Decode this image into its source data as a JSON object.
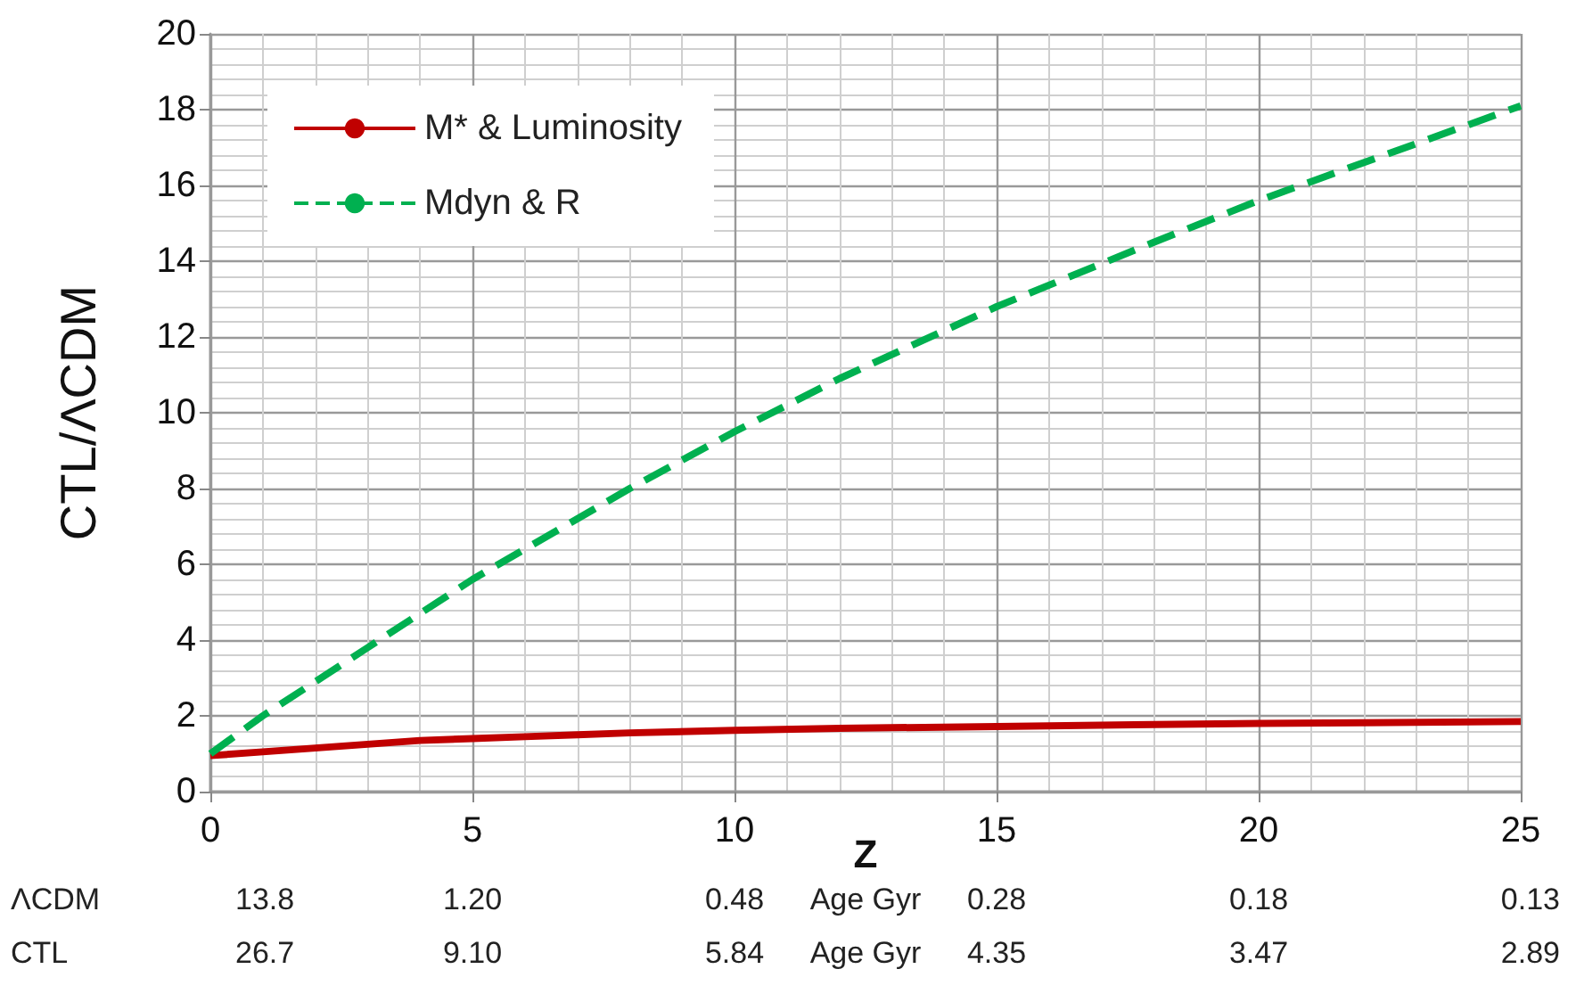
{
  "chart_data": {
    "type": "line",
    "xlabel": "Z",
    "ylabel": "CTL/ΛCDM",
    "x": [
      0,
      1,
      2,
      3,
      4,
      5,
      6,
      7,
      8,
      10,
      12,
      15,
      18,
      20,
      22,
      25
    ],
    "series": [
      {
        "name": "M* & Luminosity",
        "color": "#c00000",
        "line_style": "solid",
        "values": [
          0.95,
          1.05,
          1.15,
          1.25,
          1.35,
          1.4,
          1.45,
          1.5,
          1.55,
          1.62,
          1.67,
          1.72,
          1.77,
          1.8,
          1.82,
          1.85
        ]
      },
      {
        "name": "Mdyn & R",
        "color": "#00b050",
        "line_style": "dashed",
        "values": [
          1.0,
          2.0,
          2.9,
          3.8,
          4.7,
          5.6,
          6.4,
          7.2,
          8.0,
          9.5,
          10.9,
          12.8,
          14.5,
          15.6,
          16.6,
          18.1
        ]
      }
    ],
    "xlim": [
      0,
      25
    ],
    "xticks": [
      0,
      5,
      10,
      15,
      20,
      25
    ],
    "ylim": [
      0,
      20
    ],
    "yticks": [
      0,
      2,
      4,
      6,
      8,
      10,
      12,
      14,
      16,
      18,
      20
    ],
    "grid": true,
    "legend": "top left",
    "annotations": [
      "ΛCDM",
      "13.8",
      "1.20",
      "0.48",
      "Age Gyr",
      "0.28",
      "0.18",
      "0.13",
      "CTL",
      "26.7",
      "9.10",
      "5.84",
      "Age Gyr",
      "4.35",
      "3.47",
      "2.89"
    ]
  }
}
